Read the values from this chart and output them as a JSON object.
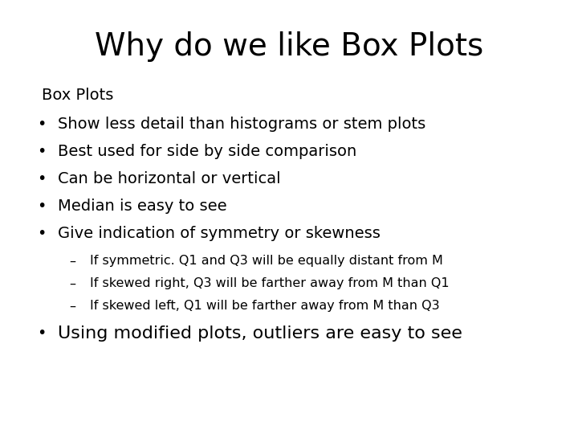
{
  "title": "Why do we like Box Plots",
  "background_color": "#ffffff",
  "text_color": "#000000",
  "title_fontsize": 28,
  "title_font": "DejaVu Sans",
  "body_fontsize": 14,
  "sub_fontsize": 11.5,
  "section_label": "Box Plots",
  "bullets": [
    "Show less detail than histograms or stem plots",
    "Best used for side by side comparison",
    "Can be horizontal or vertical",
    "Median is easy to see",
    "Give indication of symmetry or skewness"
  ],
  "sub_bullets": [
    "If symmetric. Q1 and Q3 will be equally distant from M",
    "If skewed right, Q3 will be farther away from M than Q1",
    "If skewed left, Q1 will be farther away from M than Q3"
  ],
  "last_bullet": "Using modified plots, outliers are easy to see"
}
